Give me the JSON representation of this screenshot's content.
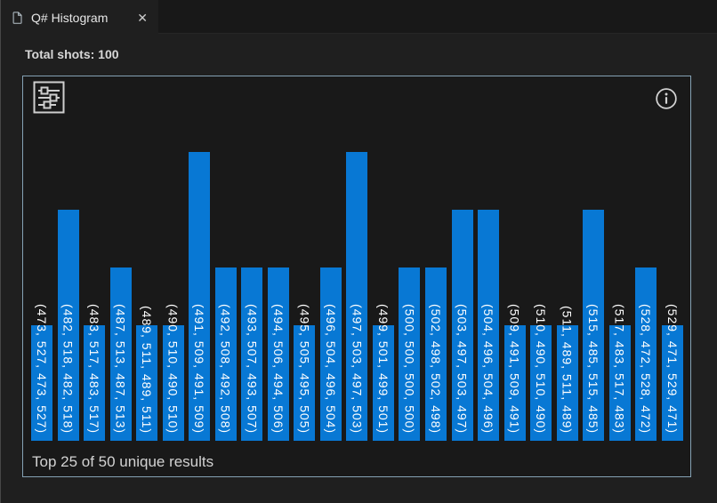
{
  "tab": {
    "title": "Q# Histogram",
    "close_glyph": "✕"
  },
  "summary": {
    "total_shots_text": "Total shots: 100"
  },
  "colors": {
    "bar": "#0878d4",
    "panel_border": "#85a2b4",
    "page_bg": "#1f1f1f",
    "panel_bg": "#191919",
    "tabstrip_bg": "#181818",
    "tab_active_bg": "#1f1f1f",
    "tab_title_text": "#e7e7e7",
    "total_shots_text": "#d7d7d7",
    "bar_label_text": "#ffffff",
    "caption_text": "#d2d2d2"
  },
  "chart_data": {
    "type": "bar",
    "title": "Q# Histogram",
    "total_shots": 100,
    "caption": "Top 25 of 50 unique results",
    "shown_results": 25,
    "unique_results": 50,
    "value_unit": "shots",
    "axes_shown": false,
    "grid": false,
    "legend": false,
    "bar_labels_rotated_90deg": true,
    "ylim": [
      0,
      6.3
    ],
    "categories": [
      "(473, 527, 473, 527)",
      "(482, 518, 482, 518)",
      "(483, 517, 483, 517)",
      "(487, 513, 487, 513)",
      "(489, 511, 489, 511)",
      "(490, 510, 490, 510)",
      "(491, 509, 491, 509)",
      "(492, 508, 492, 508)",
      "(493, 507, 493, 507)",
      "(494, 506, 494, 506)",
      "(495, 505, 495, 505)",
      "(496, 504, 496, 504)",
      "(497, 503, 497, 503)",
      "(499, 501, 499, 501)",
      "(500, 500, 500, 500)",
      "(502, 498, 502, 498)",
      "(503, 497, 503, 497)",
      "(504, 496, 504, 496)",
      "(509, 491, 509, 491)",
      "(510, 490, 510, 490)",
      "(511, 489, 511, 489)",
      "(515, 485, 515, 485)",
      "(517, 483, 517, 483)",
      "(528, 472, 528, 472)",
      "(529, 471, 529, 471)"
    ],
    "values": [
      2,
      4,
      2,
      3,
      2,
      2,
      5,
      3,
      3,
      3,
      2,
      3,
      5,
      2,
      3,
      3,
      4,
      4,
      2,
      2,
      2,
      4,
      2,
      3,
      2
    ]
  }
}
